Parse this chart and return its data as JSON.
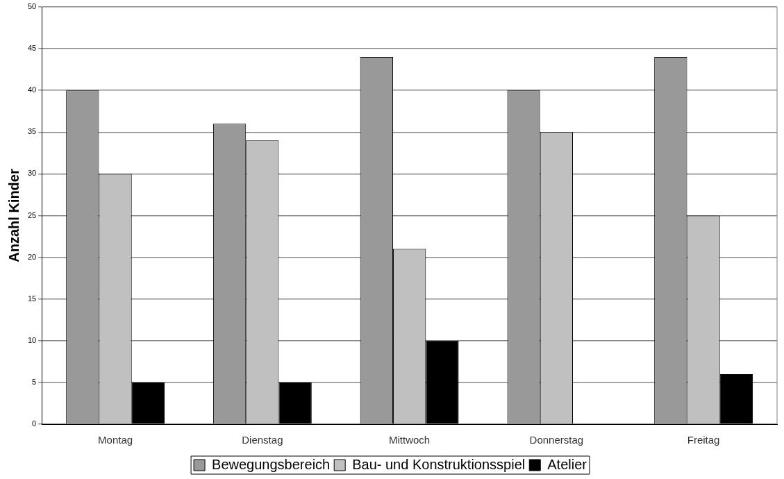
{
  "chart_data": {
    "type": "bar",
    "ylabel": "Anzahl Kinder",
    "categories": [
      "Montag",
      "Dienstag",
      "Mittwoch",
      "Donnerstag",
      "Freitag"
    ],
    "series": [
      {
        "name": "Bewegungsbereich",
        "color": "#999999",
        "values": [
          40,
          36,
          44,
          40,
          44
        ]
      },
      {
        "name": "Bau- und Konstruktionsspiel",
        "color": "#c0c0c0",
        "values": [
          30,
          34,
          21,
          35,
          25
        ]
      },
      {
        "name": "Atelier",
        "color": "#000000",
        "values": [
          5,
          5,
          10,
          0,
          6
        ]
      }
    ],
    "ylim": [
      0,
      50
    ],
    "yticks": [
      0,
      5,
      10,
      15,
      20,
      25,
      30,
      35,
      40,
      45,
      50
    ],
    "grid": "y",
    "legend": "bottom"
  }
}
